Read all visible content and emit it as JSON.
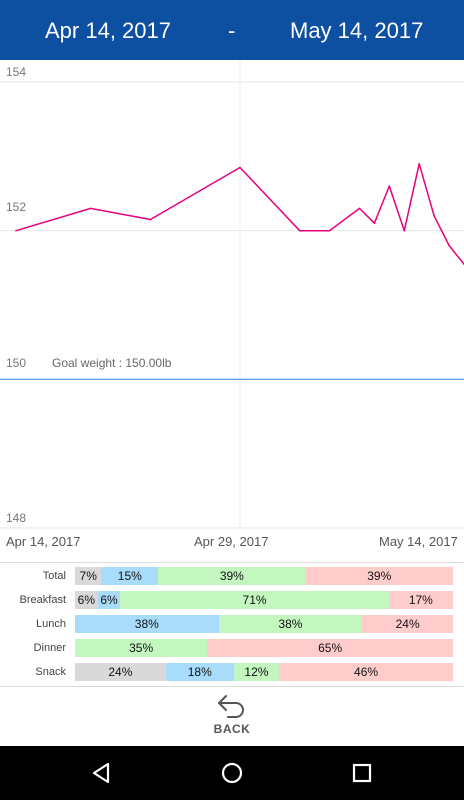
{
  "header": {
    "start_date": "Apr 14, 2017",
    "separator": "-",
    "end_date": "May 14, 2017"
  },
  "chart_data": {
    "type": "line",
    "ylim": [
      148,
      154
    ],
    "yticks": [
      "154",
      "152",
      "150",
      "148"
    ],
    "xticks": [
      "Apr 14, 2017",
      "Apr 29, 2017",
      "May 14, 2017"
    ],
    "x": [
      "2017-04-14",
      "2017-04-19",
      "2017-04-23",
      "2017-04-29",
      "2017-05-03",
      "2017-05-05",
      "2017-05-07",
      "2017-05-08",
      "2017-05-09",
      "2017-05-10",
      "2017-05-11",
      "2017-05-12",
      "2017-05-13",
      "2017-05-14"
    ],
    "y": [
      152.0,
      152.3,
      152.15,
      152.85,
      152.0,
      152.0,
      152.3,
      152.1,
      152.6,
      152.0,
      152.9,
      152.2,
      151.8,
      151.55
    ],
    "goal_label": "Goal weight : 150.00lb",
    "goal_value": 150,
    "line_color": "#e6007e",
    "goal_color": "#4a90e2"
  },
  "macros": {
    "colors": {
      "gray": "#d9d9d9",
      "blue": "#a8dcfa",
      "green": "#c4f7c0",
      "pink": "#ffcccc"
    },
    "rows": [
      {
        "label": "Total",
        "segments": [
          {
            "pct": 7,
            "text": "7%",
            "color": "gray"
          },
          {
            "pct": 15,
            "text": "15%",
            "color": "blue"
          },
          {
            "pct": 39,
            "text": "39%",
            "color": "green"
          },
          {
            "pct": 39,
            "text": "39%",
            "color": "pink"
          }
        ]
      },
      {
        "label": "Breakfast",
        "segments": [
          {
            "pct": 6,
            "text": "6%",
            "color": "gray"
          },
          {
            "pct": 6,
            "text": "6%",
            "color": "blue"
          },
          {
            "pct": 71,
            "text": "71%",
            "color": "green"
          },
          {
            "pct": 17,
            "text": "17%",
            "color": "pink"
          }
        ]
      },
      {
        "label": "Lunch",
        "segments": [
          {
            "pct": 38,
            "text": "38%",
            "color": "blue"
          },
          {
            "pct": 38,
            "text": "38%",
            "color": "green"
          },
          {
            "pct": 24,
            "text": "24%",
            "color": "pink"
          }
        ]
      },
      {
        "label": "Dinner",
        "segments": [
          {
            "pct": 35,
            "text": "35%",
            "color": "green"
          },
          {
            "pct": 65,
            "text": "65%",
            "color": "pink"
          }
        ]
      },
      {
        "label": "Snack",
        "segments": [
          {
            "pct": 24,
            "text": "24%",
            "color": "gray"
          },
          {
            "pct": 18,
            "text": "18%",
            "color": "blue"
          },
          {
            "pct": 12,
            "text": "12%",
            "color": "green"
          },
          {
            "pct": 46,
            "text": "46%",
            "color": "pink"
          }
        ]
      }
    ]
  },
  "footer": {
    "back_label": "BACK",
    "back_icon": "undo-arrow-icon"
  },
  "navbar": {
    "icons": [
      "back-triangle-icon",
      "home-circle-icon",
      "recents-square-icon"
    ]
  }
}
